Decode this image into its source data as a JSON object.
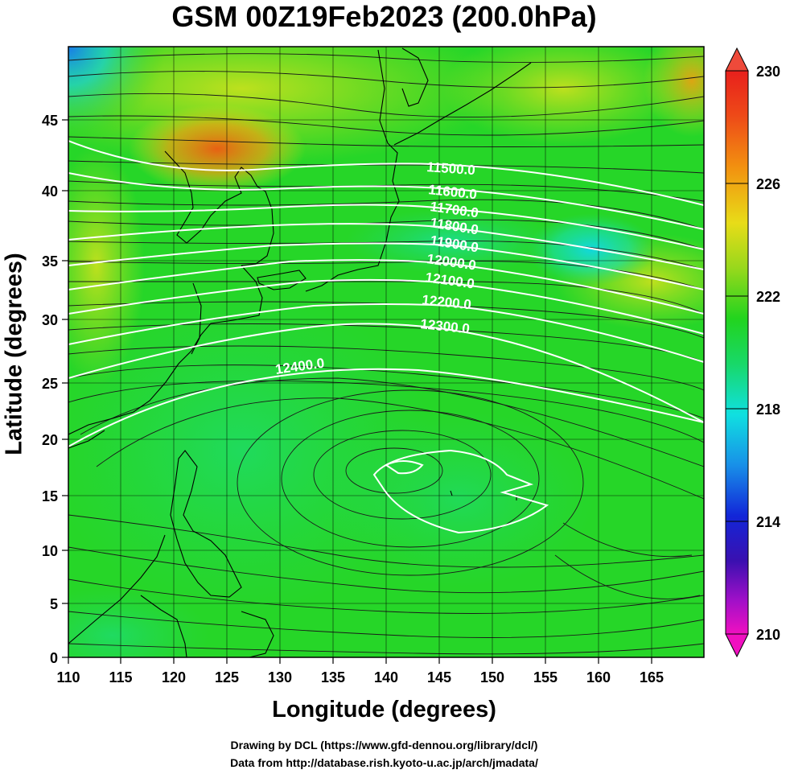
{
  "title": "GSM 00Z19Feb2023 (200.0hPa)",
  "xlabel": "Longitude (degrees)",
  "ylabel": "Latitude  (degrees)",
  "credits": [
    "Drawing by DCL (https://www.gfd-dennou.org/library/dcl/)",
    "Data from http://database.rish.kyoto-u.ac.jp/arch/jmadata/"
  ],
  "map": {
    "lon_range": [
      110,
      170
    ],
    "lat_range": [
      0,
      50
    ],
    "x_ticks": [
      110,
      115,
      120,
      125,
      130,
      135,
      140,
      145,
      150,
      155,
      160,
      165
    ],
    "y_ticks": [
      0,
      5,
      10,
      15,
      20,
      25,
      30,
      35,
      40,
      45
    ],
    "grid": true,
    "field": "temperature (shaded)",
    "overlays": [
      "geopotential height contours",
      "wind streamlines",
      "coastlines"
    ]
  },
  "colorbar": {
    "min": 210,
    "max": 230,
    "tick_labels": [
      "230",
      "226",
      "222",
      "218",
      "214",
      "210"
    ],
    "colors": {
      "high": "#e8201c",
      "orange": "#f08a10",
      "yellow": "#e6e01c",
      "green": "#22d41e",
      "cyan": "#10e0e0",
      "blue": "#1240e0",
      "navy": "#1010a0",
      "magenta": "#f010c0"
    }
  },
  "contours": [
    {
      "label": "11500.0"
    },
    {
      "label": "11600.0"
    },
    {
      "label": "11700.0"
    },
    {
      "label": "11800.0"
    },
    {
      "label": "11900.0"
    },
    {
      "label": "12000.0"
    },
    {
      "label": "12100.0"
    },
    {
      "label": "12200.0"
    },
    {
      "label": "12300.0"
    },
    {
      "label": "12400.0"
    }
  ]
}
